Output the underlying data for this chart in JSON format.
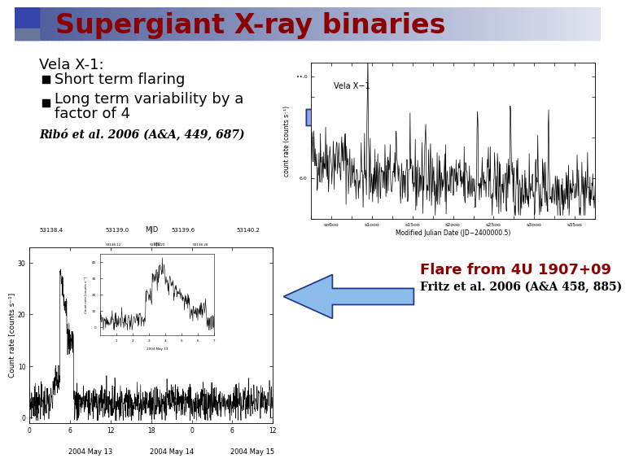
{
  "title": "Supergiant X-ray binaries",
  "title_color": "#8B0000",
  "title_fontsize": 24,
  "bg_color": "#FFFFFF",
  "vela_label": "Vela X-1:",
  "bullet1": "Short term flaring",
  "bullet2_line1": "Long term variability by a",
  "bullet2_line2": "factor of 4",
  "ref1": "Ribó et al. 2006 (A&A, 449, 687)",
  "arrow_color": "#8899DD",
  "arrow_color2": "#7EB5E8",
  "flare_title": "Flare from 4U 1907+09",
  "flare_title_color": "#8B0000",
  "flare_ref": "Fritz et al. 2006 (A&A 458, 885)",
  "header_left_color": "#5566AA",
  "header_right_color": "#CCCCDD"
}
